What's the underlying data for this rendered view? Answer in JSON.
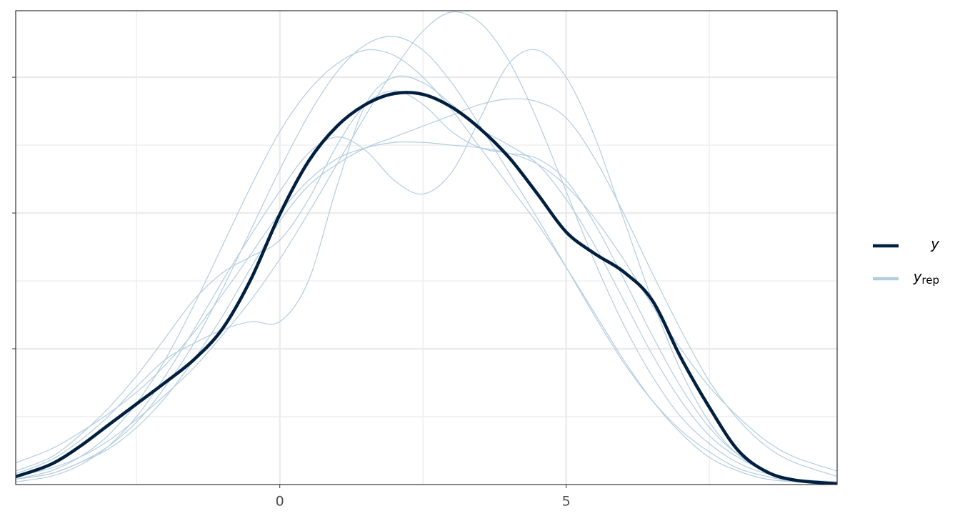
{
  "chart_data": {
    "type": "density_overlay",
    "x": [
      -4.61,
      -4,
      -3.5,
      -3,
      -2.5,
      -2,
      -1.5,
      -1,
      -0.5,
      0,
      0.5,
      1,
      1.5,
      2,
      2.5,
      3,
      3.5,
      4,
      4.5,
      5,
      5.5,
      6,
      6.5,
      7,
      7.5,
      8,
      8.5,
      9,
      9.73
    ],
    "xlim": [
      -4.61,
      9.73
    ],
    "xticks": [
      0,
      5
    ],
    "xminor": [
      -2.5,
      2.5,
      7.5
    ],
    "ylim": [
      0,
      0.1745
    ],
    "yticks": [
      0.05,
      0.1,
      0.15
    ],
    "yminor": [
      0.025,
      0.075,
      0.125
    ],
    "show_ytick_labels": false,
    "grid": true,
    "legend": "right",
    "series": [
      {
        "name": "y",
        "subscript": "rep",
        "color": "#b3cde0",
        "values": [
          0.003,
          0.006,
          0.01,
          0.016,
          0.024,
          0.033,
          0.043,
          0.055,
          0.068,
          0.083,
          0.1,
          0.118,
          0.136,
          0.153,
          0.167,
          0.174,
          0.17,
          0.156,
          0.134,
          0.108,
          0.082,
          0.059,
          0.04,
          0.025,
          0.015,
          0.008,
          0.004,
          0.002,
          0.001
        ]
      },
      {
        "color": "#b3cde0",
        "values": [
          0.004,
          0.009,
          0.016,
          0.025,
          0.036,
          0.046,
          0.052,
          0.057,
          0.06,
          0.06,
          0.075,
          0.11,
          0.14,
          0.15,
          0.148,
          0.14,
          0.131,
          0.125,
          0.118,
          0.105,
          0.088,
          0.068,
          0.048,
          0.031,
          0.018,
          0.01,
          0.005,
          0.002,
          0.001
        ]
      },
      {
        "color": "#b3cde0",
        "values": [
          0.008,
          0.013,
          0.019,
          0.026,
          0.034,
          0.044,
          0.056,
          0.07,
          0.085,
          0.1,
          0.112,
          0.12,
          0.124,
          0.126,
          0.126,
          0.125,
          0.124,
          0.122,
          0.118,
          0.11,
          0.098,
          0.083,
          0.066,
          0.05,
          0.036,
          0.025,
          0.016,
          0.01,
          0.005
        ]
      },
      {
        "color": "#b3cde0",
        "values": [
          0.002,
          0.005,
          0.01,
          0.018,
          0.03,
          0.046,
          0.066,
          0.088,
          0.11,
          0.13,
          0.145,
          0.155,
          0.16,
          0.158,
          0.15,
          0.138,
          0.124,
          0.11,
          0.096,
          0.08,
          0.063,
          0.046,
          0.031,
          0.019,
          0.01,
          0.005,
          0.002,
          0.001,
          0.0
        ]
      },
      {
        "color": "#b3cde0",
        "values": [
          0.001,
          0.003,
          0.007,
          0.014,
          0.025,
          0.04,
          0.057,
          0.075,
          0.092,
          0.108,
          0.122,
          0.128,
          0.123,
          0.112,
          0.107,
          0.115,
          0.135,
          0.155,
          0.16,
          0.15,
          0.128,
          0.098,
          0.068,
          0.042,
          0.023,
          0.011,
          0.005,
          0.002,
          0.001
        ]
      },
      {
        "color": "#b3cde0",
        "values": [
          0.002,
          0.004,
          0.008,
          0.013,
          0.021,
          0.032,
          0.046,
          0.062,
          0.08,
          0.097,
          0.11,
          0.118,
          0.124,
          0.128,
          0.132,
          0.136,
          0.14,
          0.142,
          0.141,
          0.135,
          0.12,
          0.1,
          0.078,
          0.057,
          0.038,
          0.024,
          0.014,
          0.008,
          0.003
        ]
      },
      {
        "color": "#b3cde0",
        "values": [
          0.005,
          0.01,
          0.018,
          0.028,
          0.04,
          0.054,
          0.068,
          0.078,
          0.084,
          0.09,
          0.105,
          0.125,
          0.14,
          0.145,
          0.14,
          0.13,
          0.124,
          0.122,
          0.12,
          0.112,
          0.096,
          0.076,
          0.055,
          0.036,
          0.021,
          0.011,
          0.005,
          0.002,
          0.001
        ]
      },
      {
        "color": "#b3cde0",
        "values": [
          0.002,
          0.004,
          0.008,
          0.014,
          0.023,
          0.036,
          0.052,
          0.072,
          0.094,
          0.116,
          0.136,
          0.152,
          0.162,
          0.165,
          0.16,
          0.148,
          0.132,
          0.115,
          0.098,
          0.08,
          0.062,
          0.045,
          0.031,
          0.02,
          0.012,
          0.006,
          0.003,
          0.001,
          0.0
        ]
      },
      {
        "name": "y",
        "color": "#011f3f",
        "values": [
          0.0029,
          0.0074,
          0.0139,
          0.0218,
          0.0297,
          0.0376,
          0.046,
          0.0574,
          0.0758,
          0.0995,
          0.119,
          0.132,
          0.14,
          0.144,
          0.1437,
          0.139,
          0.131,
          0.1205,
          0.107,
          0.093,
          0.085,
          0.0784,
          0.0679,
          0.0468,
          0.0284,
          0.0126,
          0.0047,
          0.0016,
          0.0003
        ]
      }
    ]
  }
}
